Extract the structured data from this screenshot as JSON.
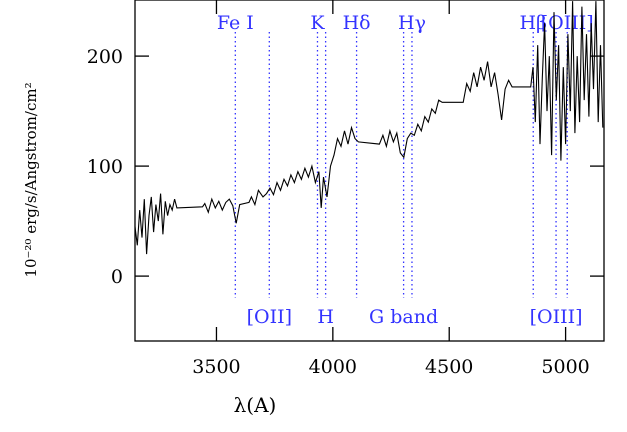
{
  "chart_data": {
    "type": "line",
    "x_label": "λ(A)",
    "y_label": "10⁻²⁰ erg/s/Angstrom/cm²",
    "xlim": [
      3150,
      5165
    ],
    "ylim": [
      -59,
      251
    ],
    "xticks": [
      3500,
      4000,
      4500,
      5000
    ],
    "yticks": [
      0,
      100,
      200
    ],
    "color": "#000000",
    "feature_color": "#3333ff",
    "x": [
      3150,
      3160,
      3170,
      3180,
      3190,
      3200,
      3210,
      3220,
      3230,
      3240,
      3250,
      3260,
      3270,
      3280,
      3290,
      3300,
      3310,
      3320,
      3330,
      3440,
      3450,
      3465,
      3480,
      3495,
      3510,
      3525,
      3540,
      3555,
      3570,
      3585,
      3600,
      3640,
      3650,
      3665,
      3680,
      3700,
      3715,
      3730,
      3745,
      3760,
      3775,
      3790,
      3805,
      3820,
      3835,
      3850,
      3865,
      3880,
      3895,
      3910,
      3925,
      3940,
      3950,
      3960,
      3975,
      3990,
      4005,
      4020,
      4035,
      4050,
      4065,
      4080,
      4095,
      4110,
      4200,
      4215,
      4230,
      4245,
      4260,
      4275,
      4290,
      4305,
      4320,
      4335,
      4350,
      4365,
      4380,
      4395,
      4410,
      4425,
      4440,
      4455,
      4470,
      4560,
      4575,
      4590,
      4605,
      4620,
      4635,
      4650,
      4665,
      4680,
      4695,
      4710,
      4725,
      4740,
      4755,
      4770,
      4850,
      4860,
      4870,
      4880,
      4890,
      4900,
      4910,
      4920,
      4930,
      4940,
      4950,
      4960,
      4970,
      4980,
      4990,
      5000,
      5010,
      5020,
      5030,
      5040,
      5050,
      5060,
      5070,
      5080,
      5090,
      5100,
      5110,
      5120,
      5130,
      5140,
      5150,
      5160
    ],
    "values": [
      45,
      28,
      60,
      35,
      70,
      20,
      55,
      72,
      40,
      65,
      50,
      75,
      38,
      68,
      55,
      65,
      60,
      70,
      62,
      63,
      66,
      58,
      70,
      62,
      68,
      60,
      67,
      70,
      64,
      48,
      65,
      67,
      72,
      65,
      78,
      72,
      75,
      80,
      74,
      85,
      78,
      88,
      82,
      92,
      85,
      95,
      88,
      98,
      90,
      100,
      85,
      95,
      62,
      90,
      72,
      100,
      110,
      125,
      118,
      132,
      120,
      135,
      125,
      122,
      120,
      128,
      118,
      132,
      122,
      130,
      112,
      108,
      125,
      130,
      128,
      138,
      132,
      145,
      140,
      152,
      148,
      160,
      158,
      158,
      175,
      168,
      185,
      172,
      190,
      178,
      195,
      172,
      185,
      165,
      142,
      170,
      178,
      172,
      172,
      190,
      140,
      210,
      120,
      180,
      230,
      150,
      200,
      110,
      240,
      160,
      210,
      105,
      190,
      120,
      220,
      150,
      250,
      130,
      200,
      140,
      245,
      160,
      220,
      145,
      230,
      170,
      250,
      140,
      210,
      135
    ],
    "top_features": [
      {
        "label": "Fe  I",
        "wavelength": 3581
      },
      {
        "label": "K",
        "wavelength": 3934
      },
      {
        "label": "Hδ",
        "wavelength": 4102
      },
      {
        "label": "Hγ",
        "wavelength": 4340
      },
      {
        "label": "Hβ",
        "wavelength": 4861
      },
      {
        "label": "[OIII]",
        "wavelength": 5007
      }
    ],
    "bottom_features": [
      {
        "label": "[OII]",
        "wavelength": 3727
      },
      {
        "label": "H",
        "wavelength": 3969
      },
      {
        "label": "G  band",
        "wavelength": 4304
      },
      {
        "label": "[OIII]",
        "wavelength": 4959
      }
    ]
  }
}
